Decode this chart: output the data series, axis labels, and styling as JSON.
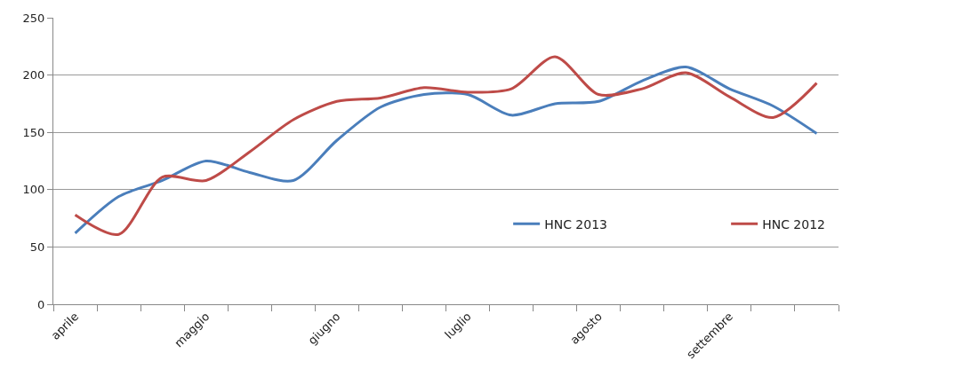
{
  "chart_data": {
    "type": "line",
    "categories": [
      "aprile",
      null,
      null,
      "maggio",
      null,
      null,
      "giugno",
      null,
      null,
      "luglio",
      null,
      null,
      "agosto",
      null,
      null,
      "settembre",
      null,
      null
    ],
    "series": [
      {
        "name": "HNC 2013",
        "color": "#4a7ebb",
        "values": [
          62,
          94,
          108,
          125,
          115,
          108,
          143,
          172,
          183,
          183,
          165,
          175,
          177,
          195,
          207,
          188,
          173,
          149
        ]
      },
      {
        "name": "HNC 2012",
        "color": "#be4b48",
        "values": [
          78,
          61,
          111,
          108,
          133,
          161,
          177,
          180,
          189,
          185,
          188,
          216,
          183,
          188,
          202,
          181,
          163,
          193
        ]
      }
    ],
    "ylim": [
      0,
      250
    ],
    "yticks": [
      0,
      50,
      100,
      150,
      200,
      250
    ],
    "grid": "y",
    "legend": "bottom right",
    "marker": "none",
    "line_style": "solid"
  }
}
